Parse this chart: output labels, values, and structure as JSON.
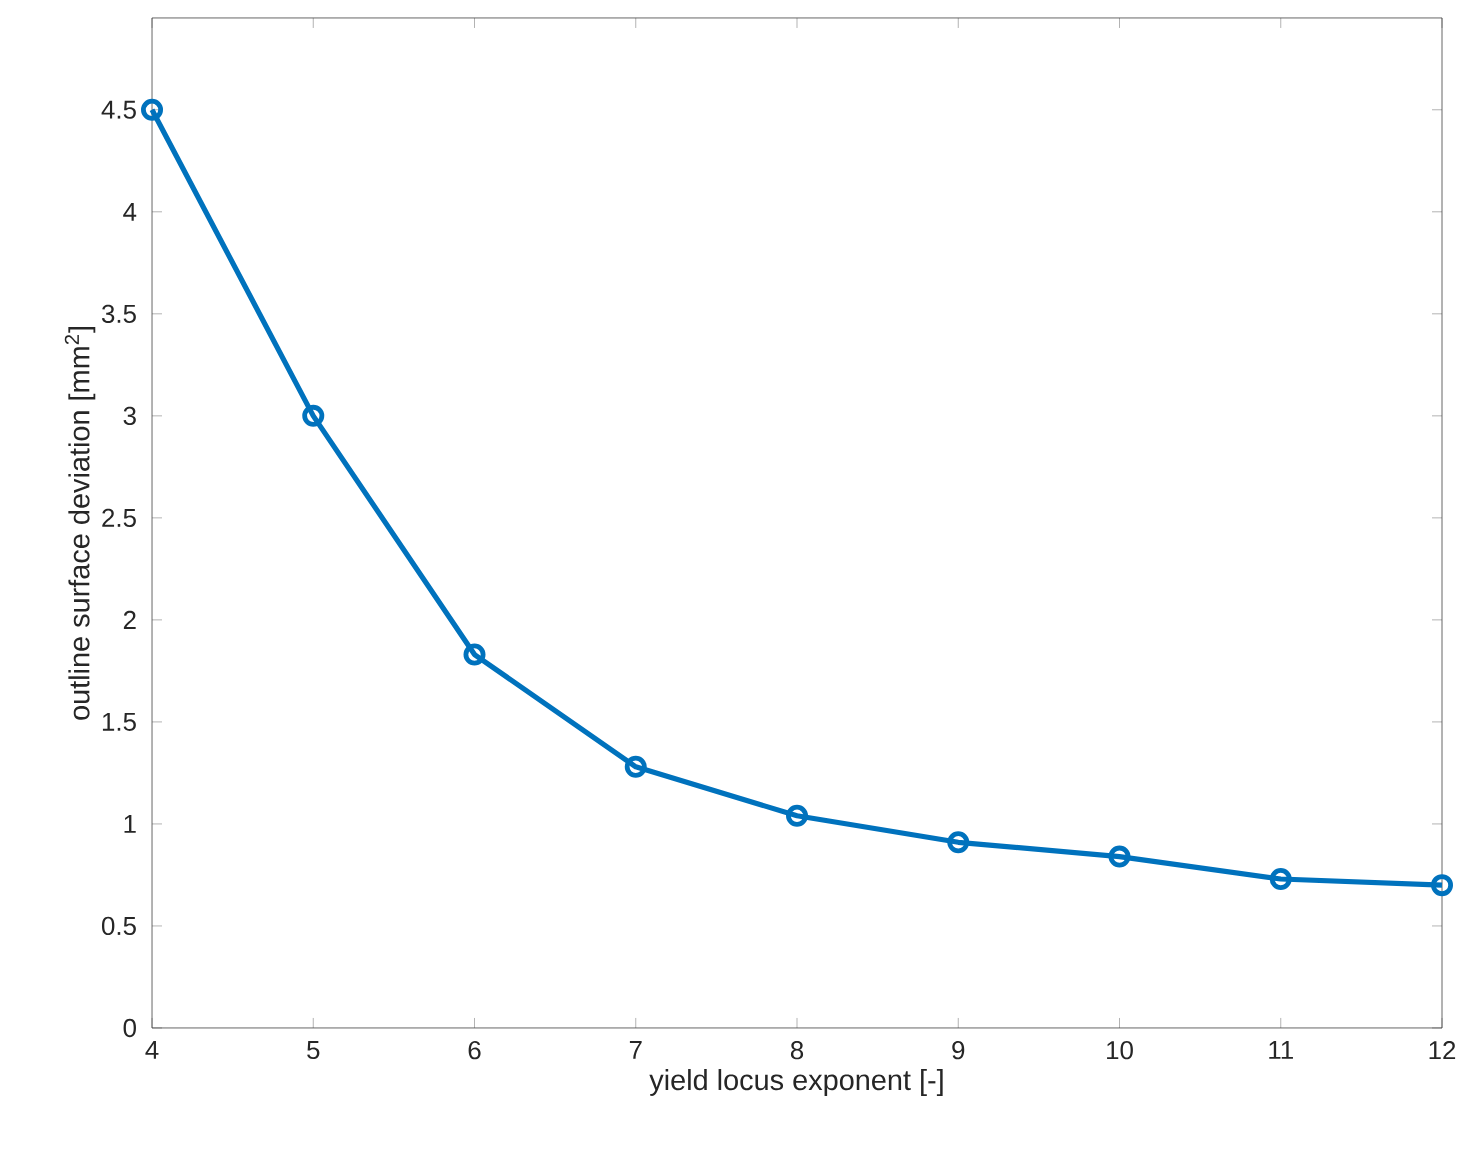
{
  "chart_data": {
    "type": "line",
    "xlabel": "yield locus exponent [-]",
    "ylabel": "outline surface deviation [mm$^{2}$]",
    "x": [
      4,
      5,
      6,
      7,
      8,
      9,
      10,
      11,
      12
    ],
    "series": [
      {
        "color": "#0072bd",
        "values": [
          4.5,
          3.0,
          1.83,
          1.28,
          1.04,
          0.91,
          0.84,
          0.73,
          0.7
        ]
      }
    ],
    "xlim": [
      4,
      12
    ],
    "ylim": [
      0,
      4.95
    ],
    "xticks": [
      4,
      5,
      6,
      7,
      8,
      9,
      10,
      11,
      12
    ],
    "yticks": [
      0,
      0.5,
      1,
      1.5,
      2,
      2.5,
      3,
      3.5,
      4,
      4.5
    ],
    "marker": "circle",
    "line_style": "solid"
  }
}
